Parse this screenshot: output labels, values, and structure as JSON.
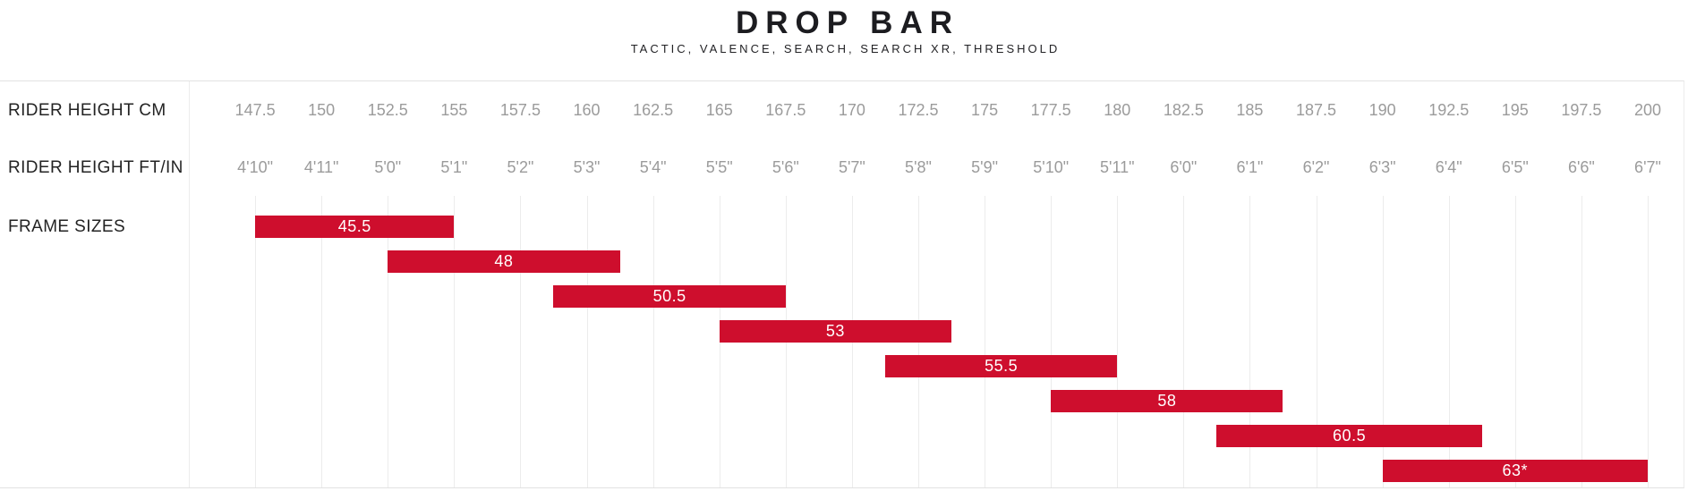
{
  "chart_data": {
    "type": "bar",
    "orientation": "horizontal-range",
    "title": "DROP BAR",
    "subtitle": "TACTIC, VALENCE, SEARCH, SEARCH XR, THRESHOLD",
    "row_headers": {
      "cm": "RIDER HEIGHT CM",
      "ftin": "RIDER HEIGHT FT/IN",
      "frame": "FRAME SIZES"
    },
    "rider_height_cm_ticks": [
      "147.5",
      "150",
      "152.5",
      "155",
      "157.5",
      "160",
      "162.5",
      "165",
      "167.5",
      "170",
      "172.5",
      "175",
      "177.5",
      "180",
      "182.5",
      "185",
      "187.5",
      "190",
      "192.5",
      "195",
      "197.5",
      "200"
    ],
    "rider_height_ftin_ticks": [
      "4'10\"",
      "4'11\"",
      "5'0\"",
      "5'1\"",
      "5'2\"",
      "5'3\"",
      "5'4\"",
      "5'5\"",
      "5'6\"",
      "5'7\"",
      "5'8\"",
      "5'9\"",
      "5'10\"",
      "5'11\"",
      "6'0\"",
      "6'1\"",
      "6'2\"",
      "6'3\"",
      "6'4\"",
      "6'5\"",
      "6'6\"",
      "6'7\""
    ],
    "axis": {
      "tick_step_cm": 2.5,
      "first_tick_cm": 147.5,
      "last_tick_cm": 200
    },
    "frame_sizes": [
      {
        "label": "45.5",
        "from_cm": 147.5,
        "to_cm": 155
      },
      {
        "label": "48",
        "from_cm": 152.5,
        "to_cm": 161.25
      },
      {
        "label": "50.5",
        "from_cm": 158.75,
        "to_cm": 167.5
      },
      {
        "label": "53",
        "from_cm": 165,
        "to_cm": 173.75
      },
      {
        "label": "55.5",
        "from_cm": 171.25,
        "to_cm": 180
      },
      {
        "label": "58",
        "from_cm": 177.5,
        "to_cm": 186.25
      },
      {
        "label": "60.5",
        "from_cm": 183.75,
        "to_cm": 193.75
      },
      {
        "label": "63*",
        "from_cm": 190,
        "to_cm": 200
      }
    ],
    "colors": {
      "bar": "#ce0e2d",
      "bar_text": "#ffffff",
      "tick_text": "#9b9b9b",
      "header_text": "#232323",
      "gridline": "#ececec",
      "border": "#e2e2e2"
    },
    "legend": "none",
    "grid": "vertical-only"
  }
}
